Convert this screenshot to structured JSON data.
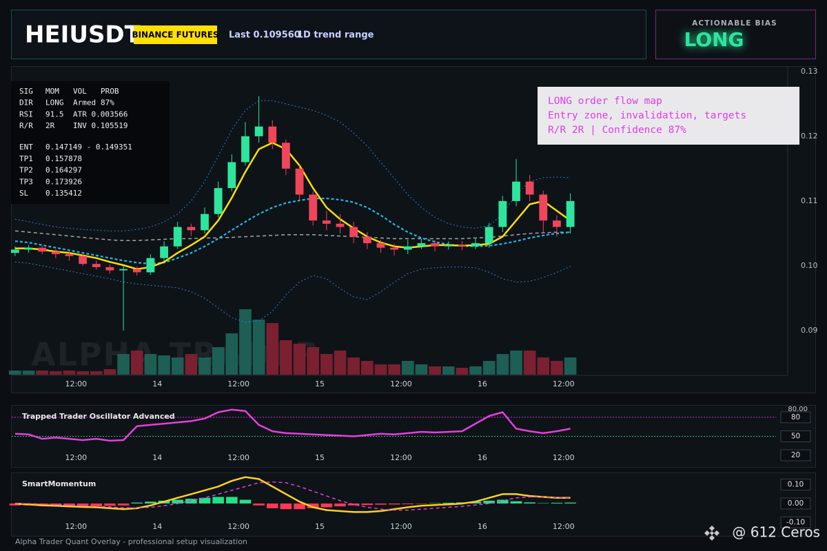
{
  "header": {
    "symbol": "HEIUSDT",
    "exchange": "BINANCE FUTURES",
    "last": "Last 0.109560",
    "range": "1D trend range"
  },
  "bias": {
    "label": "ACTIONABLE BIAS",
    "value": "LONG"
  },
  "info_panel": {
    "stats": [
      [
        "SIG",
        "MOM",
        "VOL",
        "PROB"
      ],
      [
        "DIR",
        "LONG",
        "Armed",
        "87%"
      ],
      [
        "RSI",
        "91.5",
        "ATR 0.003566"
      ],
      [
        "R/R",
        "2R",
        "INV 0.105519"
      ]
    ],
    "levels": [
      [
        "ENT",
        "0.147149 - 0.149351"
      ],
      [
        "TP1",
        "0.157878"
      ],
      [
        "TP2",
        "0.164297"
      ],
      [
        "TP3",
        "0.173926"
      ],
      [
        "SL",
        "0.135412"
      ]
    ]
  },
  "callout": {
    "lines": [
      "LONG order flow map",
      "Entry zone, invalidation, targets",
      "R/R 2R | Confidence 87%"
    ]
  },
  "watermark": "ALPHA TRADER",
  "footer": {
    "caption": "Alpha Trader Quant Overlay - professional setup visualization",
    "credit": "@ 612 Ceros"
  },
  "chart_data": [
    {
      "type": "candlestick",
      "x": [
        3,
        5,
        7,
        9,
        11,
        13,
        15,
        17,
        19,
        21,
        23,
        25,
        27,
        29,
        31,
        33,
        35,
        37,
        39,
        41,
        43,
        45,
        47,
        49,
        51,
        53,
        55,
        57,
        59,
        61,
        63,
        65,
        67,
        69,
        71,
        73,
        75,
        77,
        79,
        81,
        83,
        85
      ],
      "open": [
        0.102,
        0.1025,
        0.1028,
        0.1022,
        0.1018,
        0.1015,
        0.1003,
        0.0998,
        0.0993,
        0.0995,
        0.099,
        0.1012,
        0.103,
        0.106,
        0.1055,
        0.108,
        0.112,
        0.116,
        0.12,
        0.1215,
        0.119,
        0.115,
        0.111,
        0.107,
        0.1065,
        0.106,
        0.1045,
        0.1035,
        0.1028,
        0.1025,
        0.103,
        0.1035,
        0.103,
        0.1032,
        0.103,
        0.1035,
        0.106,
        0.11,
        0.113,
        0.111,
        0.107,
        0.106
      ],
      "high": [
        0.103,
        0.1032,
        0.1031,
        0.1026,
        0.1022,
        0.1018,
        0.1008,
        0.1002,
        0.1,
        0.0999,
        0.1018,
        0.1038,
        0.1068,
        0.1065,
        0.109,
        0.113,
        0.1172,
        0.1222,
        0.1262,
        0.1225,
        0.1195,
        0.1155,
        0.1115,
        0.1085,
        0.108,
        0.1068,
        0.1052,
        0.104,
        0.1034,
        0.104,
        0.1042,
        0.104,
        0.1038,
        0.1038,
        0.1042,
        0.1066,
        0.1108,
        0.1165,
        0.114,
        0.1116,
        0.1078,
        0.1112
      ],
      "low": [
        0.1015,
        0.102,
        0.1018,
        0.1012,
        0.1008,
        0.1,
        0.0994,
        0.0988,
        0.09,
        0.0985,
        0.0986,
        0.1008,
        0.1026,
        0.1046,
        0.105,
        0.1075,
        0.1115,
        0.1155,
        0.119,
        0.118,
        0.114,
        0.11,
        0.1062,
        0.1055,
        0.105,
        0.1035,
        0.1026,
        0.102,
        0.1016,
        0.1018,
        0.1026,
        0.1022,
        0.1025,
        0.1024,
        0.1026,
        0.1028,
        0.1052,
        0.1092,
        0.11,
        0.1052,
        0.1045,
        0.105
      ],
      "close": [
        0.1025,
        0.1028,
        0.1022,
        0.1018,
        0.1015,
        0.1003,
        0.0998,
        0.0993,
        0.0995,
        0.099,
        0.1012,
        0.103,
        0.106,
        0.1055,
        0.108,
        0.112,
        0.116,
        0.12,
        0.1215,
        0.119,
        0.115,
        0.111,
        0.107,
        0.1065,
        0.106,
        0.1045,
        0.1035,
        0.1028,
        0.1025,
        0.103,
        0.1035,
        0.103,
        0.1032,
        0.103,
        0.1035,
        0.106,
        0.11,
        0.113,
        0.111,
        0.107,
        0.106,
        0.11
      ],
      "volume": [
        6,
        6,
        6,
        5,
        6,
        5,
        5,
        8,
        30,
        35,
        30,
        28,
        25,
        30,
        25,
        40,
        60,
        95,
        80,
        75,
        50,
        45,
        40,
        30,
        35,
        25,
        20,
        15,
        15,
        20,
        15,
        12,
        12,
        10,
        12,
        20,
        30,
        35,
        35,
        25,
        20,
        25
      ],
      "up_color": "#2ee59d",
      "down_color": "#f0455a",
      "volume_up_color": "#1d5e55",
      "volume_down_color": "#7a2030",
      "series": [
        {
          "color": "#2f7fc0",
          "style": "dotted",
          "values": [
            0.1072,
            0.1068,
            0.1064,
            0.106,
            0.1058,
            0.1056,
            0.1055,
            0.1054,
            0.1054,
            0.1056,
            0.106,
            0.1068,
            0.108,
            0.11,
            0.113,
            0.117,
            0.121,
            0.124,
            0.1255,
            0.1255,
            0.125,
            0.1245,
            0.124,
            0.1232,
            0.1222,
            0.1205,
            0.1185,
            0.116,
            0.1135,
            0.111,
            0.109,
            0.1075,
            0.1065,
            0.106,
            0.1058,
            0.1062,
            0.108,
            0.111,
            0.113,
            0.1136,
            0.1137,
            0.1136
          ]
        },
        {
          "color": "#2f7fc0",
          "style": "dotted",
          "values": [
            0.1006,
            0.1004,
            0.1,
            0.0996,
            0.0992,
            0.0988,
            0.0984,
            0.098,
            0.0975,
            0.0972,
            0.097,
            0.0968,
            0.0966,
            0.096,
            0.095,
            0.0935,
            0.092,
            0.0913,
            0.0915,
            0.093,
            0.0955,
            0.0975,
            0.0985,
            0.098,
            0.0965,
            0.0952,
            0.0948,
            0.096,
            0.0975,
            0.0988,
            0.0995,
            0.0997,
            0.0998,
            0.0998,
            0.0997,
            0.099,
            0.098,
            0.0975,
            0.0976,
            0.0982,
            0.099,
            0.0999
          ]
        },
        {
          "color": "#d8d8d8",
          "style": "dashed",
          "values": [
            0.1054,
            0.1052,
            0.105,
            0.1048,
            0.1046,
            0.1044,
            0.1042,
            0.104,
            0.1039,
            0.1039,
            0.104,
            0.1041,
            0.1042,
            0.1042,
            0.1043,
            0.1043,
            0.1044,
            0.1045,
            0.1046,
            0.1047,
            0.1048,
            0.1048,
            0.1048,
            0.1047,
            0.1046,
            0.1045,
            0.1044,
            0.1043,
            0.1042,
            0.1042,
            0.1042,
            0.1042,
            0.1042,
            0.1042,
            0.1043,
            0.1044,
            0.1046,
            0.1048,
            0.105,
            0.1051,
            0.1052,
            0.1052
          ]
        },
        {
          "color": "#22b8e6",
          "style": "dashed-bold",
          "values": [
            0.1038,
            0.1036,
            0.1032,
            0.1028,
            0.1024,
            0.102,
            0.1016,
            0.1012,
            0.1008,
            0.1005,
            0.1003,
            0.1005,
            0.1012,
            0.102,
            0.103,
            0.1042,
            0.1055,
            0.1068,
            0.108,
            0.109,
            0.1097,
            0.1101,
            0.1104,
            0.1104,
            0.1102,
            0.1098,
            0.109,
            0.1078,
            0.1064,
            0.1052,
            0.1043,
            0.1037,
            0.1033,
            0.1031,
            0.103,
            0.1031,
            0.1034,
            0.1038,
            0.1043,
            0.1047,
            0.105,
            0.1052
          ]
        },
        {
          "color": "#ffe000",
          "style": "solid",
          "values": [
            0.1027,
            0.1027,
            0.1025,
            0.1022,
            0.102,
            0.1016,
            0.1012,
            0.1006,
            0.1001,
            0.0995,
            0.0998,
            0.1006,
            0.102,
            0.1032,
            0.1045,
            0.107,
            0.1105,
            0.1145,
            0.118,
            0.119,
            0.118,
            0.1155,
            0.112,
            0.109,
            0.1072,
            0.1058,
            0.1045,
            0.1036,
            0.103,
            0.1028,
            0.103,
            0.1032,
            0.1032,
            0.1031,
            0.1032,
            0.1034,
            0.1045,
            0.107,
            0.1095,
            0.11,
            0.1085,
            0.107
          ]
        }
      ],
      "xlim": [
        2.4,
        117.1
      ],
      "xticks": [
        {
          "value": 12,
          "label": "12:00"
        },
        {
          "value": 24,
          "label": "14"
        },
        {
          "value": 36,
          "label": "12:00"
        },
        {
          "value": 48,
          "label": "15"
        },
        {
          "value": 60,
          "label": "12:00"
        },
        {
          "value": 72,
          "label": "16"
        },
        {
          "value": 84,
          "label": "12:00"
        }
      ],
      "ylim": [
        0.0832,
        0.1304
      ],
      "yticks": [
        0.13,
        0.12,
        0.11,
        {
          "value": 0.1,
          "label": "0.10"
        },
        0.09
      ]
    },
    {
      "type": "line",
      "title": "Trapped Trader Oscillator Advanced",
      "x": [
        3,
        5,
        7,
        9,
        11,
        13,
        15,
        17,
        19,
        21,
        23,
        25,
        27,
        29,
        31,
        33,
        35,
        37,
        39,
        41,
        43,
        45,
        47,
        49,
        51,
        53,
        55,
        57,
        59,
        61,
        63,
        65,
        67,
        69,
        71,
        73,
        75,
        77,
        79,
        81,
        83,
        85
      ],
      "series": [
        {
          "color": "#e83ee0",
          "style": "solid",
          "values": [
            54,
            53,
            46,
            48,
            46,
            44,
            46,
            43,
            44,
            66,
            68,
            70,
            72,
            74,
            78,
            88,
            92,
            90,
            68,
            58,
            55,
            54,
            53,
            52,
            51,
            50,
            52,
            54,
            53,
            55,
            57,
            56,
            57,
            58,
            70,
            82,
            88,
            62,
            58,
            55,
            58,
            62
          ]
        }
      ],
      "upper_level": {
        "value": 80,
        "label": "80.00"
      },
      "upper_level_color": "#c040c0",
      "mid_level": 50,
      "mid_level_color": "#40c070",
      "xlim": [
        2.4,
        117.1
      ],
      "xticks": [
        {
          "value": 12,
          "label": "12:00"
        },
        {
          "value": 24,
          "label": "14"
        },
        {
          "value": 36,
          "label": "12:00"
        },
        {
          "value": 48,
          "label": "15"
        },
        {
          "value": 60,
          "label": "12:00"
        },
        {
          "value": 72,
          "label": "16"
        },
        {
          "value": 84,
          "label": "12:00"
        }
      ],
      "ylim": [
        7,
        94
      ],
      "yticks": [
        80,
        50,
        20
      ]
    },
    {
      "type": "bar",
      "title": "SmartMomentum",
      "x": [
        3,
        5,
        7,
        9,
        11,
        13,
        15,
        17,
        19,
        21,
        23,
        25,
        27,
        29,
        31,
        33,
        35,
        37,
        39,
        41,
        43,
        45,
        47,
        49,
        51,
        53,
        55,
        57,
        59,
        61,
        63,
        65,
        67,
        69,
        71,
        73,
        75,
        77,
        79,
        81,
        83,
        85
      ],
      "values": [
        -0.01,
        -0.01,
        -0.012,
        -0.014,
        -0.015,
        -0.016,
        -0.014,
        -0.012,
        -0.01,
        0.005,
        0.01,
        0.015,
        0.02,
        0.025,
        0.03,
        0.035,
        0.035,
        0.02,
        -0.01,
        -0.025,
        -0.03,
        -0.03,
        -0.025,
        -0.02,
        -0.015,
        -0.01,
        -0.008,
        -0.006,
        -0.005,
        -0.004,
        -0.002,
        0.002,
        0.004,
        0.006,
        0.01,
        0.015,
        0.02,
        0.012,
        0.006,
        0.002,
        0.004,
        0.005
      ],
      "up_color": "#22e088",
      "down_color": "#ff3a55",
      "series": [
        {
          "color": "#ffd21a",
          "style": "solid",
          "values": [
            0.0,
            -0.005,
            -0.01,
            -0.012,
            -0.015,
            -0.018,
            -0.02,
            -0.025,
            -0.03,
            -0.025,
            -0.01,
            0.01,
            0.03,
            0.05,
            0.07,
            0.09,
            0.12,
            0.14,
            0.13,
            0.09,
            0.05,
            0.01,
            -0.02,
            -0.035,
            -0.04,
            -0.045,
            -0.045,
            -0.04,
            -0.03,
            -0.02,
            -0.012,
            -0.008,
            -0.005,
            0.0,
            0.01,
            0.03,
            0.05,
            0.05,
            0.04,
            0.035,
            0.03,
            0.03
          ]
        },
        {
          "color": "#e040e0",
          "style": "dashed",
          "values": [
            0.0,
            0.0,
            -0.003,
            -0.006,
            -0.009,
            -0.012,
            -0.015,
            -0.018,
            -0.022,
            -0.024,
            -0.02,
            -0.012,
            0.0,
            0.015,
            0.03,
            0.05,
            0.07,
            0.09,
            0.11,
            0.115,
            0.11,
            0.09,
            0.065,
            0.04,
            0.015,
            -0.005,
            -0.02,
            -0.03,
            -0.035,
            -0.035,
            -0.03,
            -0.025,
            -0.02,
            -0.015,
            -0.008,
            0.0,
            0.015,
            0.03,
            0.035,
            0.035,
            0.032,
            0.03
          ]
        }
      ],
      "xlim": [
        2.4,
        117.1
      ],
      "xticks": [
        {
          "value": 12,
          "label": "12:00"
        },
        {
          "value": 24,
          "label": "14"
        },
        {
          "value": 36,
          "label": "12:00"
        },
        {
          "value": 48,
          "label": "15"
        },
        {
          "value": 60,
          "label": "12:00"
        },
        {
          "value": 72,
          "label": "16"
        },
        {
          "value": 84,
          "label": "12:00"
        }
      ],
      "ylim": [
        -0.135,
        0.15
      ],
      "yticks": [
        {
          "value": 0.1,
          "label": "0.10"
        },
        {
          "value": 0,
          "label": "0.00"
        },
        {
          "value": -0.1,
          "label": "-0.10"
        }
      ]
    }
  ]
}
